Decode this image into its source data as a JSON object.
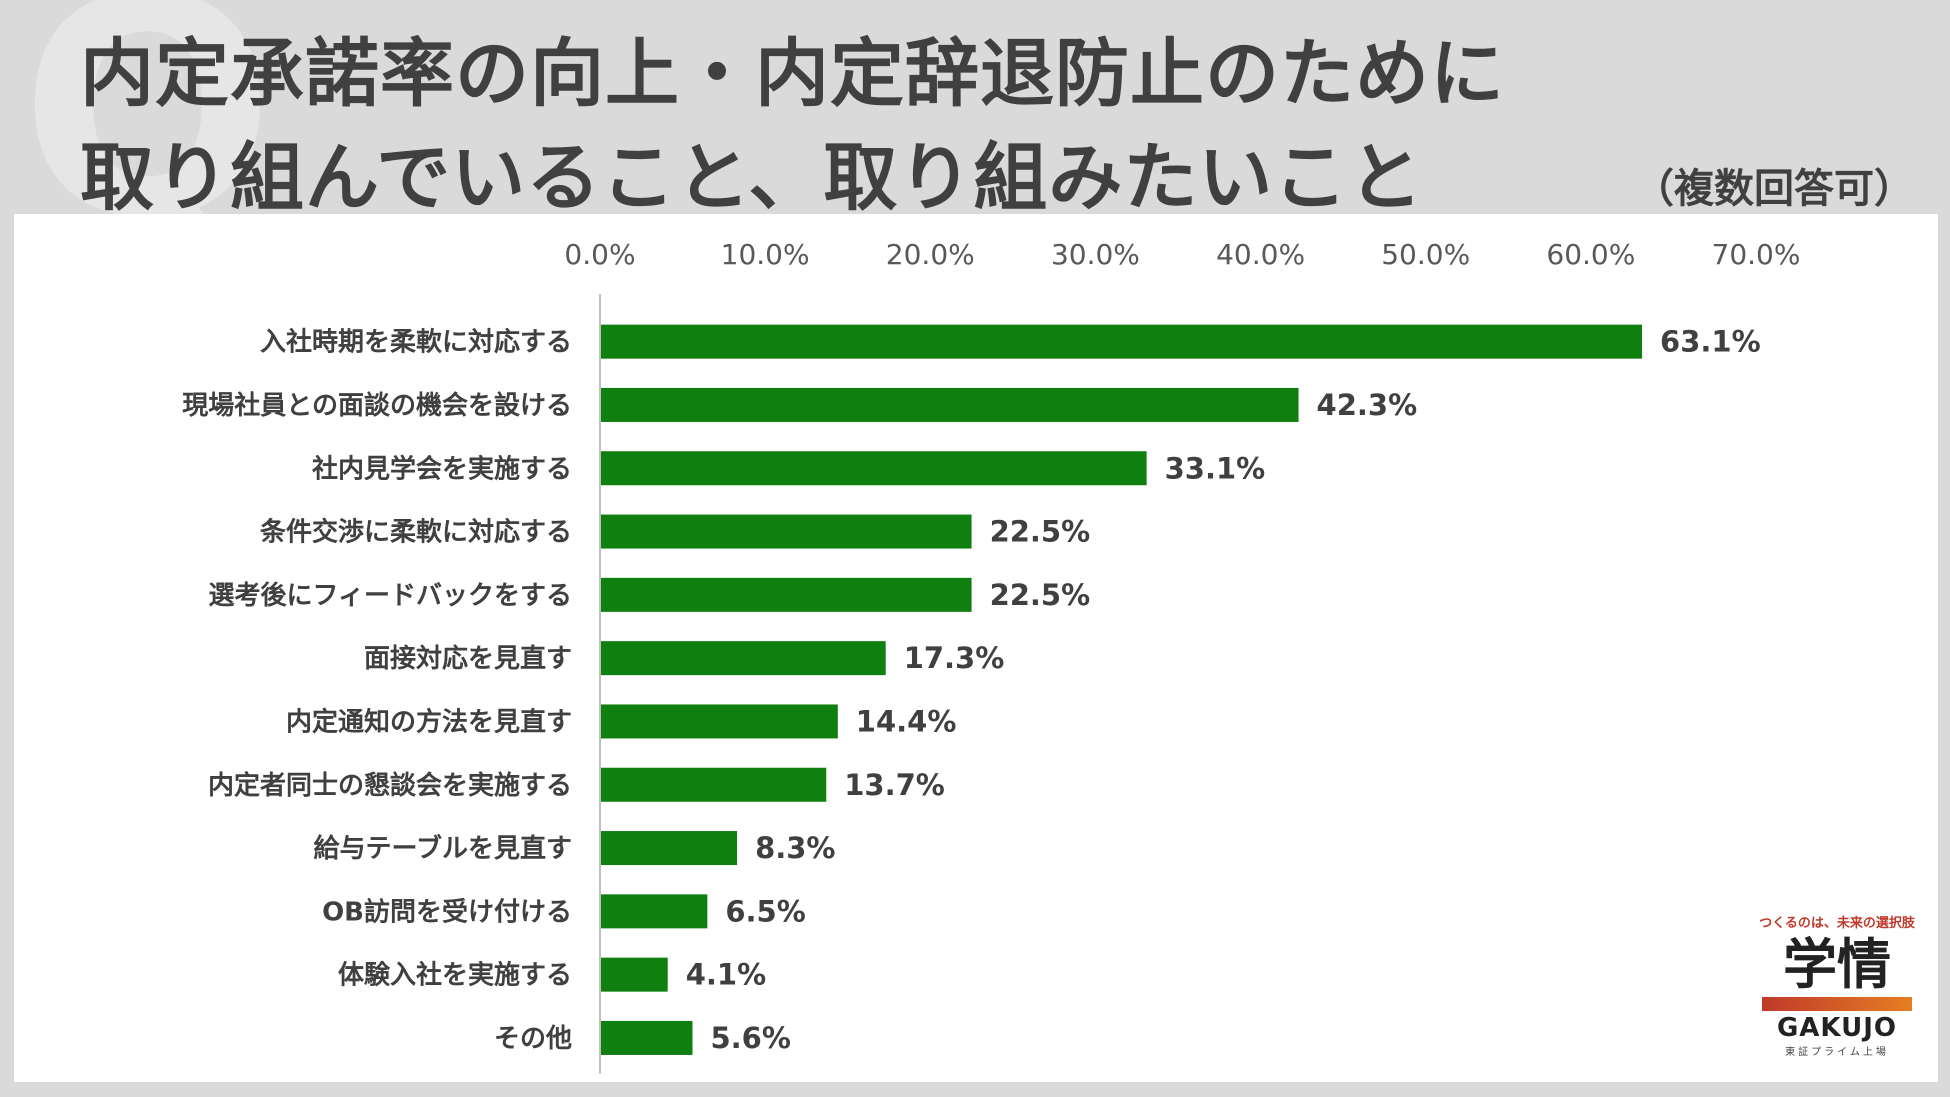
{
  "header": {
    "watermark": "Q",
    "title_line1": "内定承諾率の向上・内定辞退防止のために",
    "title_line2": "取り組んでいること、取り組みたいこと",
    "note": "（複数回答可）"
  },
  "chart_data": {
    "type": "bar",
    "orientation": "horizontal",
    "categories": [
      "入社時期を柔軟に対応する",
      "現場社員との面談の機会を設ける",
      "社内見学会を実施する",
      "条件交渉に柔軟に対応する",
      "選考後にフィードバックをする",
      "面接対応を見直す",
      "内定通知の方法を見直す",
      "内定者同士の懇談会を実施する",
      "給与テーブルを見直す",
      "OB訪問を受け付ける",
      "体験入社を実施する",
      "その他"
    ],
    "values": [
      63.1,
      42.3,
      33.1,
      22.5,
      22.5,
      17.3,
      14.4,
      13.7,
      8.3,
      6.5,
      4.1,
      5.6
    ],
    "value_labels": [
      "63.1%",
      "42.3%",
      "33.1%",
      "22.5%",
      "22.5%",
      "17.3%",
      "14.4%",
      "13.7%",
      "8.3%",
      "6.5%",
      "4.1%",
      "5.6%"
    ],
    "xticks": [
      "0.0%",
      "10.0%",
      "20.0%",
      "30.0%",
      "40.0%",
      "50.0%",
      "60.0%",
      "70.0%"
    ],
    "xlim": [
      0,
      70
    ],
    "axis_position": "top",
    "grid": false,
    "bar_color": "#0f7f0f"
  },
  "logo": {
    "tagline": "つくるのは、未来の選択肢",
    "name_jp": "学情",
    "name_en": "GAKUJO",
    "sub": "東証プライム上場"
  }
}
